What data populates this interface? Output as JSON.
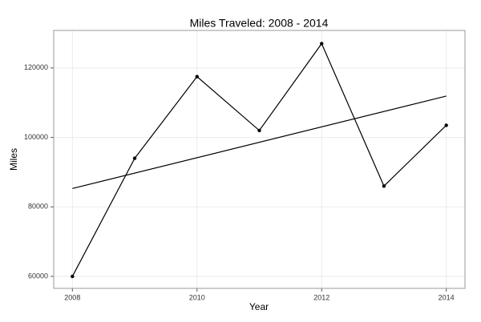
{
  "chart_data": {
    "type": "line",
    "title": "Miles Traveled: 2008 - 2014",
    "x_label": "Year",
    "y_label": "Miles",
    "x": [
      2008,
      2009,
      2010,
      2011,
      2012,
      2013,
      2014
    ],
    "series": [
      {
        "color": "#000000",
        "values": [
          60000,
          94000,
          117500,
          102000,
          127000,
          86000,
          103500
        ]
      }
    ],
    "trend": {
      "x": [
        2008,
        2014
      ],
      "values": [
        85300,
        111900
      ],
      "color": "#000000"
    },
    "xlim": [
      2007.7,
      2014.3
    ],
    "xticks": [
      2008,
      2010,
      2012,
      2014
    ],
    "ylim": [
      56550,
      130800
    ],
    "yticks": [
      60000,
      80000,
      100000,
      120000
    ],
    "grid": true
  }
}
